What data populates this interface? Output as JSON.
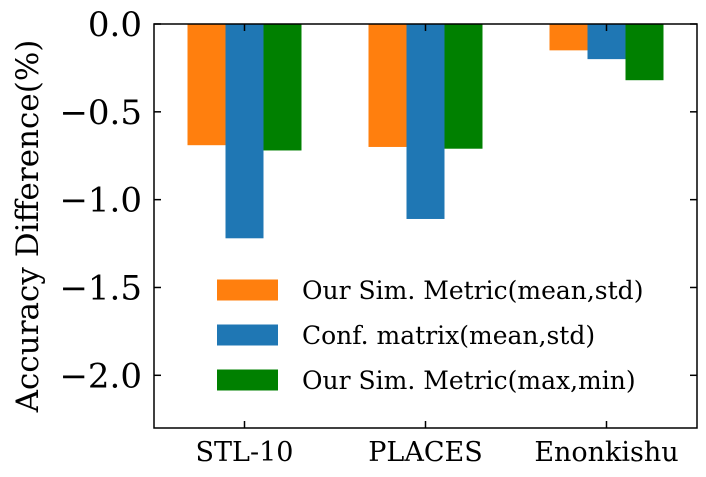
{
  "chart_data": {
    "type": "bar",
    "title": "",
    "xlabel": "",
    "ylabel": "Accuracy Difference(%)",
    "categories": [
      "STL-10",
      "PLACES",
      "Enonkishu"
    ],
    "series": [
      {
        "name": "Our Sim. Metric(mean,std)",
        "color": "#ff7f0e",
        "values": [
          -0.69,
          -0.7,
          -0.15
        ]
      },
      {
        "name": "Conf. matrix(mean,std)",
        "color": "#1f77b4",
        "values": [
          -1.22,
          -1.11,
          -0.2
        ]
      },
      {
        "name": "Our Sim. Metric(max,min)",
        "color": "#008000",
        "values": [
          -0.72,
          -0.71,
          -0.32
        ]
      }
    ],
    "ylim": [
      -2.3,
      0.0
    ],
    "yticks": [
      0.0,
      -0.5,
      -1.0,
      -1.5,
      -2.0
    ],
    "ytick_labels": [
      "0.0",
      "−0.5",
      "−1.0",
      "−1.5",
      "−2.0"
    ],
    "legend_position": "lower-right",
    "grid": false
  }
}
